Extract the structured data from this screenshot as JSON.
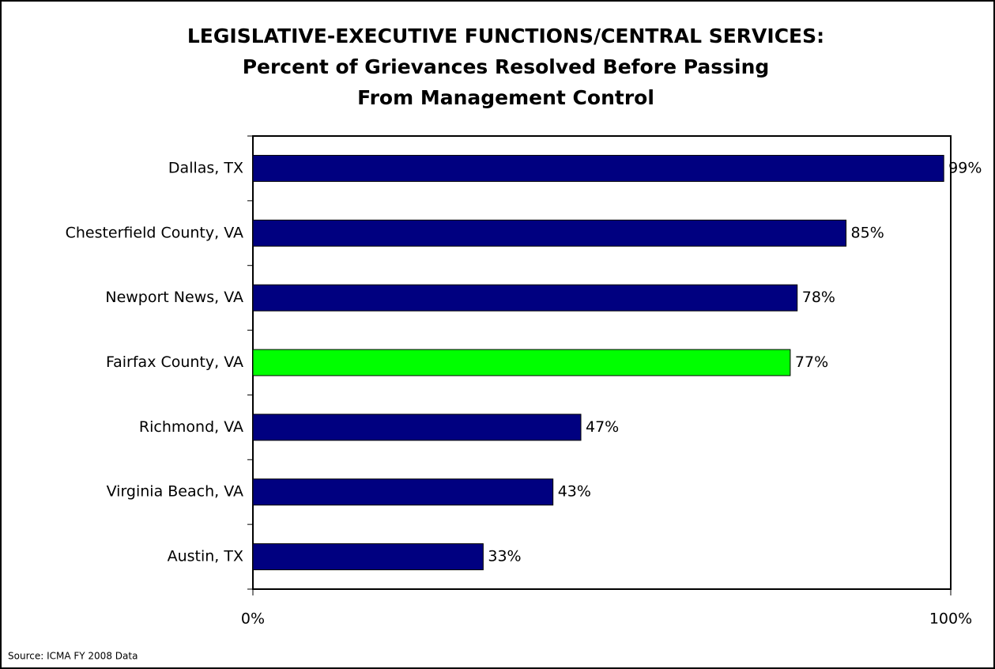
{
  "chart_data": {
    "type": "bar",
    "orientation": "horizontal",
    "title": [
      "LEGISLATIVE-EXECUTIVE FUNCTIONS/CENTRAL SERVICES:",
      "Percent of Grievances Resolved Before Passing",
      "From Management Control"
    ],
    "categories": [
      "Dallas, TX",
      "Chesterfield County, VA",
      "Newport News, VA",
      "Fairfax County, VA",
      "Richmond, VA",
      "Virginia Beach, VA",
      "Austin, TX"
    ],
    "values": [
      99,
      85,
      78,
      77,
      47,
      43,
      33
    ],
    "value_labels": [
      "99%",
      "85%",
      "78%",
      "77%",
      "47%",
      "43%",
      "33%"
    ],
    "colors": [
      "#000080",
      "#000080",
      "#000080",
      "#00ff00",
      "#000080",
      "#000080",
      "#000080"
    ],
    "xlim": [
      0,
      100
    ],
    "xticks": [
      {
        "value": 0,
        "label": "0%"
      },
      {
        "value": 100,
        "label": "100%"
      }
    ]
  },
  "source": "Source: ICMA FY 2008 Data"
}
